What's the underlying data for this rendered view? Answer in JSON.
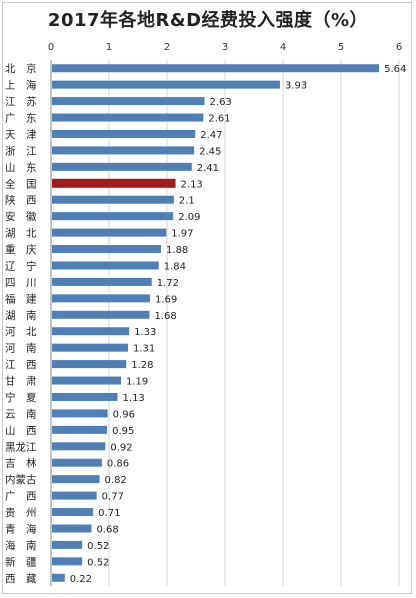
{
  "chart_data": {
    "type": "bar",
    "orientation": "horizontal",
    "title": "2017年各地R&D经费投入强度（%）",
    "xlabel": "",
    "ylabel": "",
    "xlim": [
      0,
      6
    ],
    "ticks": [
      "0",
      "1",
      "2",
      "3",
      "4",
      "5",
      "6"
    ],
    "grid": true,
    "legend": "none",
    "highlight_color": "#a31a1c",
    "bar_color": "#4f7fb5",
    "categories": [
      "北　京",
      "上　海",
      "江　苏",
      "广　东",
      "天　津",
      "浙　江",
      "山　东",
      "全　国",
      "陕　西",
      "安　徽",
      "湖　北",
      "重　庆",
      "辽　宁",
      "四　川",
      "福　建",
      "湖　南",
      "河　北",
      "河　南",
      "江　西",
      "甘　肃",
      "宁　夏",
      "云　南",
      "山　西",
      "黑龙江",
      "吉　林",
      "内蒙古",
      "广　西",
      "贵　州",
      "青　海",
      "海　南",
      "新　疆",
      "西　藏"
    ],
    "values": [
      5.64,
      3.93,
      2.63,
      2.61,
      2.47,
      2.45,
      2.41,
      2.13,
      2.1,
      2.09,
      1.97,
      1.88,
      1.84,
      1.72,
      1.69,
      1.68,
      1.33,
      1.31,
      1.28,
      1.19,
      1.13,
      0.96,
      0.95,
      0.92,
      0.86,
      0.82,
      0.77,
      0.71,
      0.68,
      0.52,
      0.52,
      0.22
    ],
    "labels": [
      "5.64",
      "3.93",
      "2.63",
      "2.61",
      "2.47",
      "2.45",
      "2.41",
      "2.13",
      "2.1",
      "2.09",
      "1.97",
      "1.88",
      "1.84",
      "1.72",
      "1.69",
      "1.68",
      "1.33",
      "1.31",
      "1.28",
      "1.19",
      "1.13",
      "0.96",
      "0.95",
      "0.92",
      "0.86",
      "0.82",
      "0.77",
      "0.71",
      "0.68",
      "0.52",
      "0.52",
      "0.22"
    ],
    "highlighted_category": "全　国"
  }
}
